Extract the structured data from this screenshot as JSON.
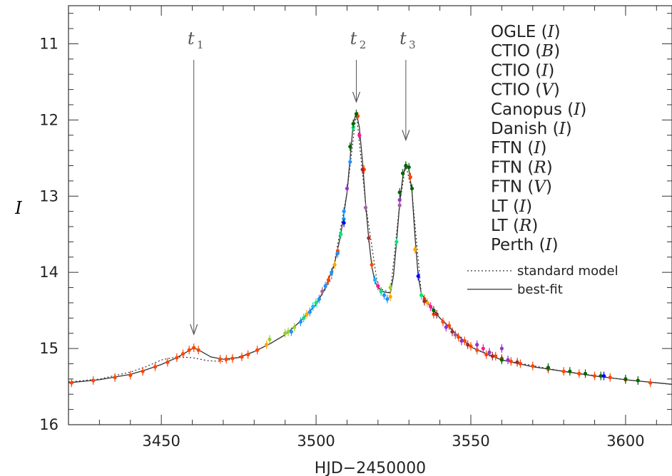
{
  "chart_data": {
    "type": "scatter",
    "xlabel": "HJD−2450000",
    "ylabel": "I",
    "xlim": [
      3420,
      3615
    ],
    "ylim": [
      16,
      10.5
    ],
    "y_inverted": true,
    "x_ticks": [
      3450,
      3500,
      3550,
      3600
    ],
    "y_ticks": [
      11,
      12,
      13,
      14,
      15,
      16
    ],
    "grid": false,
    "legend_position": "top-right",
    "legend": [
      {
        "instrument": "OGLE",
        "band": "I",
        "color": "#ff4500"
      },
      {
        "instrument": "CTIO",
        "band": "B",
        "color": "#1e90ff"
      },
      {
        "instrument": "CTIO",
        "band": "I",
        "color": "#00e676"
      },
      {
        "instrument": "CTIO",
        "band": "V",
        "color": "#ffa500"
      },
      {
        "instrument": "Canopus",
        "band": "I",
        "color": "#9932cc"
      },
      {
        "instrument": "Danish",
        "band": "I",
        "color": "#006400"
      },
      {
        "instrument": "FTN",
        "band": "I",
        "color": "#ff1493"
      },
      {
        "instrument": "FTN",
        "band": "R",
        "color": "#00bfff"
      },
      {
        "instrument": "FTN",
        "band": "V",
        "color": "#a52a2a"
      },
      {
        "instrument": "LT",
        "band": "I",
        "color": "#0000ff"
      },
      {
        "instrument": "LT",
        "band": "R",
        "color": "#9acd32"
      },
      {
        "instrument": "Perth",
        "band": "I",
        "color": "#a0609a"
      }
    ],
    "models": [
      {
        "name": "standard model",
        "style": "dotted"
      },
      {
        "name": "best-fit",
        "style": "solid"
      }
    ],
    "annotations": [
      {
        "label": "t",
        "sub": "1",
        "x": 3460.5,
        "y": 14.85
      },
      {
        "label": "t",
        "sub": "2",
        "x": 3513,
        "y": 11.8
      },
      {
        "label": "t",
        "sub": "3",
        "x": 3529,
        "y": 12.3
      }
    ],
    "best_fit_curve": [
      [
        3420,
        15.45
      ],
      [
        3430,
        15.41
      ],
      [
        3440,
        15.34
      ],
      [
        3445,
        15.28
      ],
      [
        3450,
        15.21
      ],
      [
        3455,
        15.12
      ],
      [
        3458,
        15.05
      ],
      [
        3460.5,
        14.99
      ],
      [
        3463,
        15.04
      ],
      [
        3466,
        15.11
      ],
      [
        3470,
        15.14
      ],
      [
        3475,
        15.12
      ],
      [
        3480,
        15.04
      ],
      [
        3485,
        14.94
      ],
      [
        3490,
        14.82
      ],
      [
        3495,
        14.64
      ],
      [
        3500,
        14.42
      ],
      [
        3503,
        14.2
      ],
      [
        3506,
        13.88
      ],
      [
        3508,
        13.5
      ],
      [
        3510,
        12.95
      ],
      [
        3511,
        12.5
      ],
      [
        3512,
        12.05
      ],
      [
        3513,
        11.9
      ],
      [
        3514,
        12.1
      ],
      [
        3515,
        12.55
      ],
      [
        3516,
        13.1
      ],
      [
        3517,
        13.55
      ],
      [
        3518,
        13.92
      ],
      [
        3519,
        14.12
      ],
      [
        3520,
        14.2
      ],
      [
        3522,
        14.26
      ],
      [
        3524,
        14.27
      ],
      [
        3525,
        14.05
      ],
      [
        3526,
        13.6
      ],
      [
        3527,
        13.1
      ],
      [
        3528,
        12.75
      ],
      [
        3529,
        12.58
      ],
      [
        3530,
        12.65
      ],
      [
        3531,
        12.95
      ],
      [
        3532,
        13.55
      ],
      [
        3533,
        14.05
      ],
      [
        3534,
        14.28
      ],
      [
        3536,
        14.4
      ],
      [
        3540,
        14.6
      ],
      [
        3545,
        14.8
      ],
      [
        3550,
        14.98
      ],
      [
        3555,
        15.07
      ],
      [
        3560,
        15.15
      ],
      [
        3570,
        15.24
      ],
      [
        3580,
        15.3
      ],
      [
        3590,
        15.36
      ],
      [
        3600,
        15.41
      ],
      [
        3610,
        15.45
      ],
      [
        3615,
        15.47
      ]
    ],
    "standard_model_curve": [
      [
        3420,
        15.44
      ],
      [
        3430,
        15.4
      ],
      [
        3440,
        15.31
      ],
      [
        3445,
        15.24
      ],
      [
        3450,
        15.15
      ],
      [
        3455,
        15.11
      ],
      [
        3460,
        15.12
      ],
      [
        3465,
        15.16
      ],
      [
        3470,
        15.17
      ],
      [
        3475,
        15.11
      ],
      [
        3480,
        15.04
      ],
      [
        3485,
        14.94
      ],
      [
        3490,
        14.82
      ],
      [
        3495,
        14.64
      ],
      [
        3500,
        14.42
      ],
      [
        3505,
        14.08
      ],
      [
        3510,
        12.95
      ],
      [
        3513,
        11.9
      ],
      [
        3516,
        13.1
      ],
      [
        3520,
        14.2
      ],
      [
        3524,
        14.27
      ],
      [
        3527,
        13.1
      ],
      [
        3529,
        12.58
      ],
      [
        3531,
        12.95
      ],
      [
        3534,
        14.28
      ],
      [
        3540,
        14.6
      ],
      [
        3550,
        14.98
      ],
      [
        3560,
        15.15
      ],
      [
        3580,
        15.3
      ],
      [
        3600,
        15.41
      ],
      [
        3615,
        15.47
      ]
    ],
    "observations": [
      {
        "series": 0,
        "points": [
          [
            3421,
            15.45
          ],
          [
            3428,
            15.42
          ],
          [
            3435,
            15.38
          ],
          [
            3440,
            15.35
          ],
          [
            3444,
            15.3
          ],
          [
            3448,
            15.24
          ],
          [
            3452,
            15.18
          ],
          [
            3455,
            15.12
          ],
          [
            3457,
            15.07
          ],
          [
            3459,
            15.02
          ],
          [
            3460.5,
            14.99
          ],
          [
            3462,
            15.02
          ],
          [
            3469,
            15.14
          ],
          [
            3471,
            15.14
          ],
          [
            3473,
            15.13
          ],
          [
            3476,
            15.11
          ],
          [
            3478,
            15.08
          ],
          [
            3481,
            15.02
          ],
          [
            3504,
            14.1
          ],
          [
            3507,
            13.72
          ],
          [
            3513.5,
            11.95
          ],
          [
            3515.5,
            12.65
          ],
          [
            3518,
            13.9
          ],
          [
            3521,
            14.25
          ],
          [
            3530.5,
            12.75
          ],
          [
            3535,
            14.35
          ],
          [
            3538,
            14.55
          ],
          [
            3541,
            14.65
          ],
          [
            3543,
            14.7
          ],
          [
            3546,
            14.85
          ],
          [
            3548,
            14.9
          ],
          [
            3550,
            14.97
          ],
          [
            3552,
            15.02
          ],
          [
            3555,
            15.08
          ],
          [
            3558,
            15.1
          ],
          [
            3560,
            15.13
          ],
          [
            3563,
            15.17
          ],
          [
            3566,
            15.2
          ],
          [
            3570,
            15.23
          ],
          [
            3575,
            15.27
          ],
          [
            3580,
            15.3
          ],
          [
            3585,
            15.33
          ],
          [
            3590,
            15.36
          ],
          [
            3595,
            15.38
          ],
          [
            3600,
            15.41
          ],
          [
            3608,
            15.45
          ]
        ]
      },
      {
        "series": 1,
        "points": [
          [
            3492,
            14.78
          ],
          [
            3495,
            14.65
          ],
          [
            3498,
            14.52
          ],
          [
            3501,
            14.35
          ],
          [
            3503,
            14.18
          ],
          [
            3505,
            14.0
          ],
          [
            3507,
            13.75
          ],
          [
            3509,
            13.2
          ],
          [
            3511,
            12.55
          ],
          [
            3522,
            14.3
          ],
          [
            3523,
            14.35
          ]
        ]
      },
      {
        "series": 2,
        "points": [
          [
            3496,
            14.6
          ],
          [
            3500,
            14.4
          ],
          [
            3508,
            13.5
          ],
          [
            3512,
            12.1
          ],
          [
            3521,
            14.25
          ],
          [
            3526,
            13.6
          ],
          [
            3534,
            14.3
          ]
        ]
      },
      {
        "series": 3,
        "points": [
          [
            3484,
            14.95
          ],
          [
            3497,
            14.55
          ],
          [
            3506,
            13.9
          ],
          [
            3524,
            14.32
          ],
          [
            3532,
            13.7
          ],
          [
            3536,
            14.4
          ]
        ]
      },
      {
        "series": 4,
        "points": [
          [
            3510,
            12.9
          ],
          [
            3527,
            13.05
          ],
          [
            3529,
            12.6
          ],
          [
            3542,
            14.72
          ],
          [
            3547,
            14.9
          ],
          [
            3552,
            14.95
          ],
          [
            3556,
            15.05
          ],
          [
            3560,
            15.0
          ],
          [
            3562,
            15.15
          ]
        ]
      },
      {
        "series": 5,
        "points": [
          [
            3511,
            12.35
          ],
          [
            3512,
            12.05
          ],
          [
            3513,
            11.92
          ],
          [
            3527,
            12.95
          ],
          [
            3528,
            12.7
          ],
          [
            3529,
            12.6
          ],
          [
            3530,
            12.62
          ],
          [
            3531,
            12.9
          ],
          [
            3538,
            14.5
          ],
          [
            3560,
            15.15
          ],
          [
            3575,
            15.25
          ],
          [
            3582,
            15.3
          ],
          [
            3587,
            15.33
          ],
          [
            3592,
            15.36
          ],
          [
            3600,
            15.4
          ],
          [
            3604,
            15.42
          ]
        ]
      },
      {
        "series": 6,
        "points": [
          [
            3514,
            12.2
          ],
          [
            3520,
            14.18
          ],
          [
            3537,
            14.45
          ],
          [
            3554,
            15.0
          ]
        ]
      },
      {
        "series": 7,
        "points": [
          [
            3499,
            14.45
          ],
          [
            3509,
            13.3
          ],
          [
            3519,
            14.1
          ]
        ]
      },
      {
        "series": 8,
        "points": [
          [
            3515,
            12.65
          ],
          [
            3517,
            13.55
          ],
          [
            3535,
            14.38
          ],
          [
            3539,
            14.55
          ],
          [
            3544,
            14.78
          ],
          [
            3549,
            14.95
          ],
          [
            3557,
            15.1
          ],
          [
            3565,
            15.18
          ]
        ]
      },
      {
        "series": 9,
        "points": [
          [
            3509,
            13.35
          ],
          [
            3533,
            14.05
          ],
          [
            3593,
            15.36
          ]
        ]
      },
      {
        "series": 10,
        "points": [
          [
            3485,
            14.88
          ],
          [
            3490,
            14.8
          ],
          [
            3491,
            14.78
          ],
          [
            3493,
            14.72
          ],
          [
            3524,
            14.2
          ]
        ]
      },
      {
        "series": 11,
        "points": [
          [
            3502,
            14.25
          ],
          [
            3516,
            13.15
          ],
          [
            3527,
            13.12
          ],
          [
            3545,
            14.82
          ]
        ]
      }
    ]
  }
}
